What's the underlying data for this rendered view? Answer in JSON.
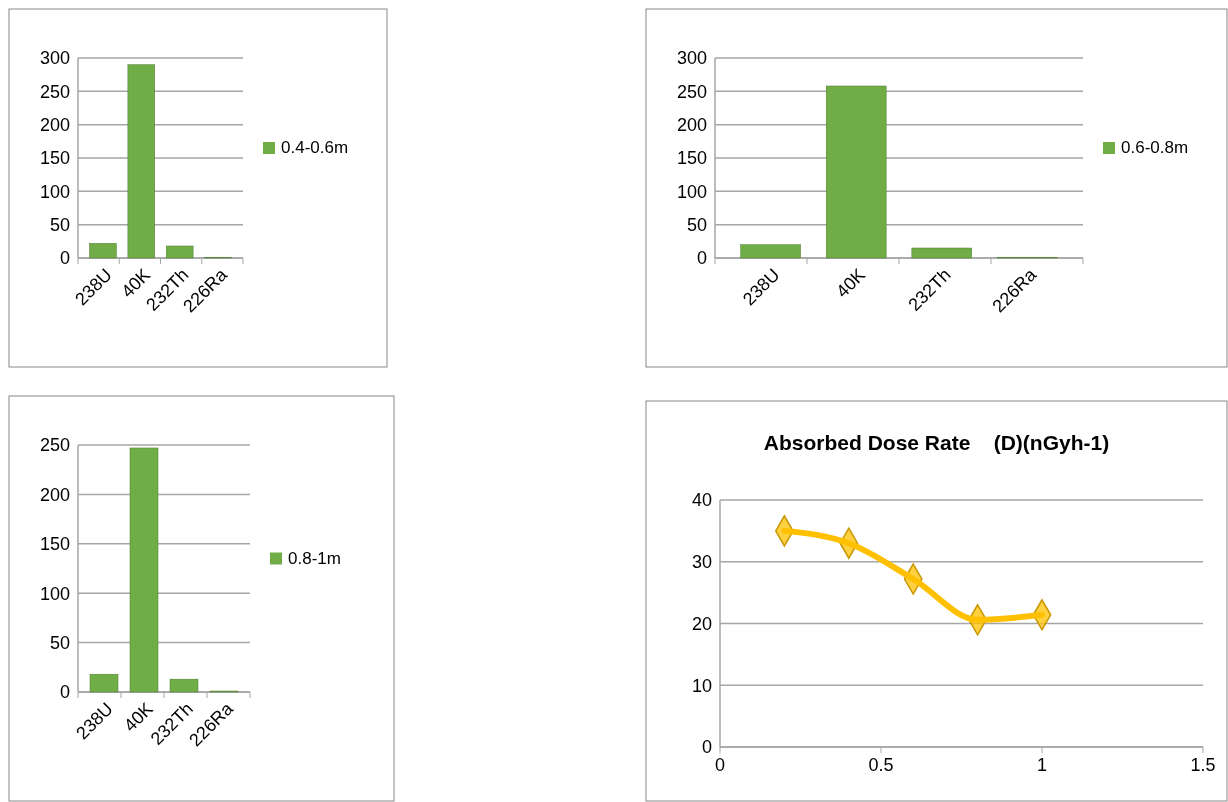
{
  "chart_data": [
    {
      "type": "bar",
      "categories": [
        "238U",
        "40K",
        "232Th",
        "226Ra"
      ],
      "series": [
        {
          "name": "0.4-0.6m",
          "color": "#70ad47",
          "values": [
            22,
            290,
            18,
            1
          ]
        }
      ],
      "ylim": [
        0,
        300
      ],
      "yticks": [
        0,
        50,
        100,
        150,
        200,
        250,
        300
      ],
      "grid": "y",
      "legend": "right"
    },
    {
      "type": "bar",
      "categories": [
        "238U",
        "40K",
        "232Th",
        "226Ra"
      ],
      "series": [
        {
          "name": "0.6-0.8m",
          "color": "#70ad47",
          "values": [
            20,
            258,
            15,
            1
          ]
        }
      ],
      "ylim": [
        0,
        300
      ],
      "yticks": [
        0,
        50,
        100,
        150,
        200,
        250,
        300
      ],
      "grid": "y",
      "legend": "right"
    },
    {
      "type": "bar",
      "categories": [
        "238U",
        "40K",
        "232Th",
        "226Ra"
      ],
      "series": [
        {
          "name": "0.8-1m",
          "color": "#70ad47",
          "values": [
            18,
            247,
            13,
            1
          ]
        }
      ],
      "ylim": [
        0,
        250
      ],
      "yticks": [
        0,
        50,
        100,
        150,
        200,
        250
      ],
      "grid": "y",
      "legend": "right"
    },
    {
      "type": "line",
      "title": "Absorbed Dose Rate    (D)(nGyh-1)",
      "x": [
        0.2,
        0.4,
        0.6,
        0.8,
        1
      ],
      "series": [
        {
          "color": "#ffc000",
          "values": [
            35,
            33,
            27.2,
            20.6,
            21.4
          ]
        }
      ],
      "xlim": [
        0,
        1.5
      ],
      "xticks": [
        0,
        0.5,
        1,
        1.5
      ],
      "ylim": [
        0,
        40
      ],
      "yticks": [
        0,
        10,
        20,
        30,
        40
      ],
      "grid": "y",
      "marker": "diamond",
      "legend": false
    }
  ]
}
